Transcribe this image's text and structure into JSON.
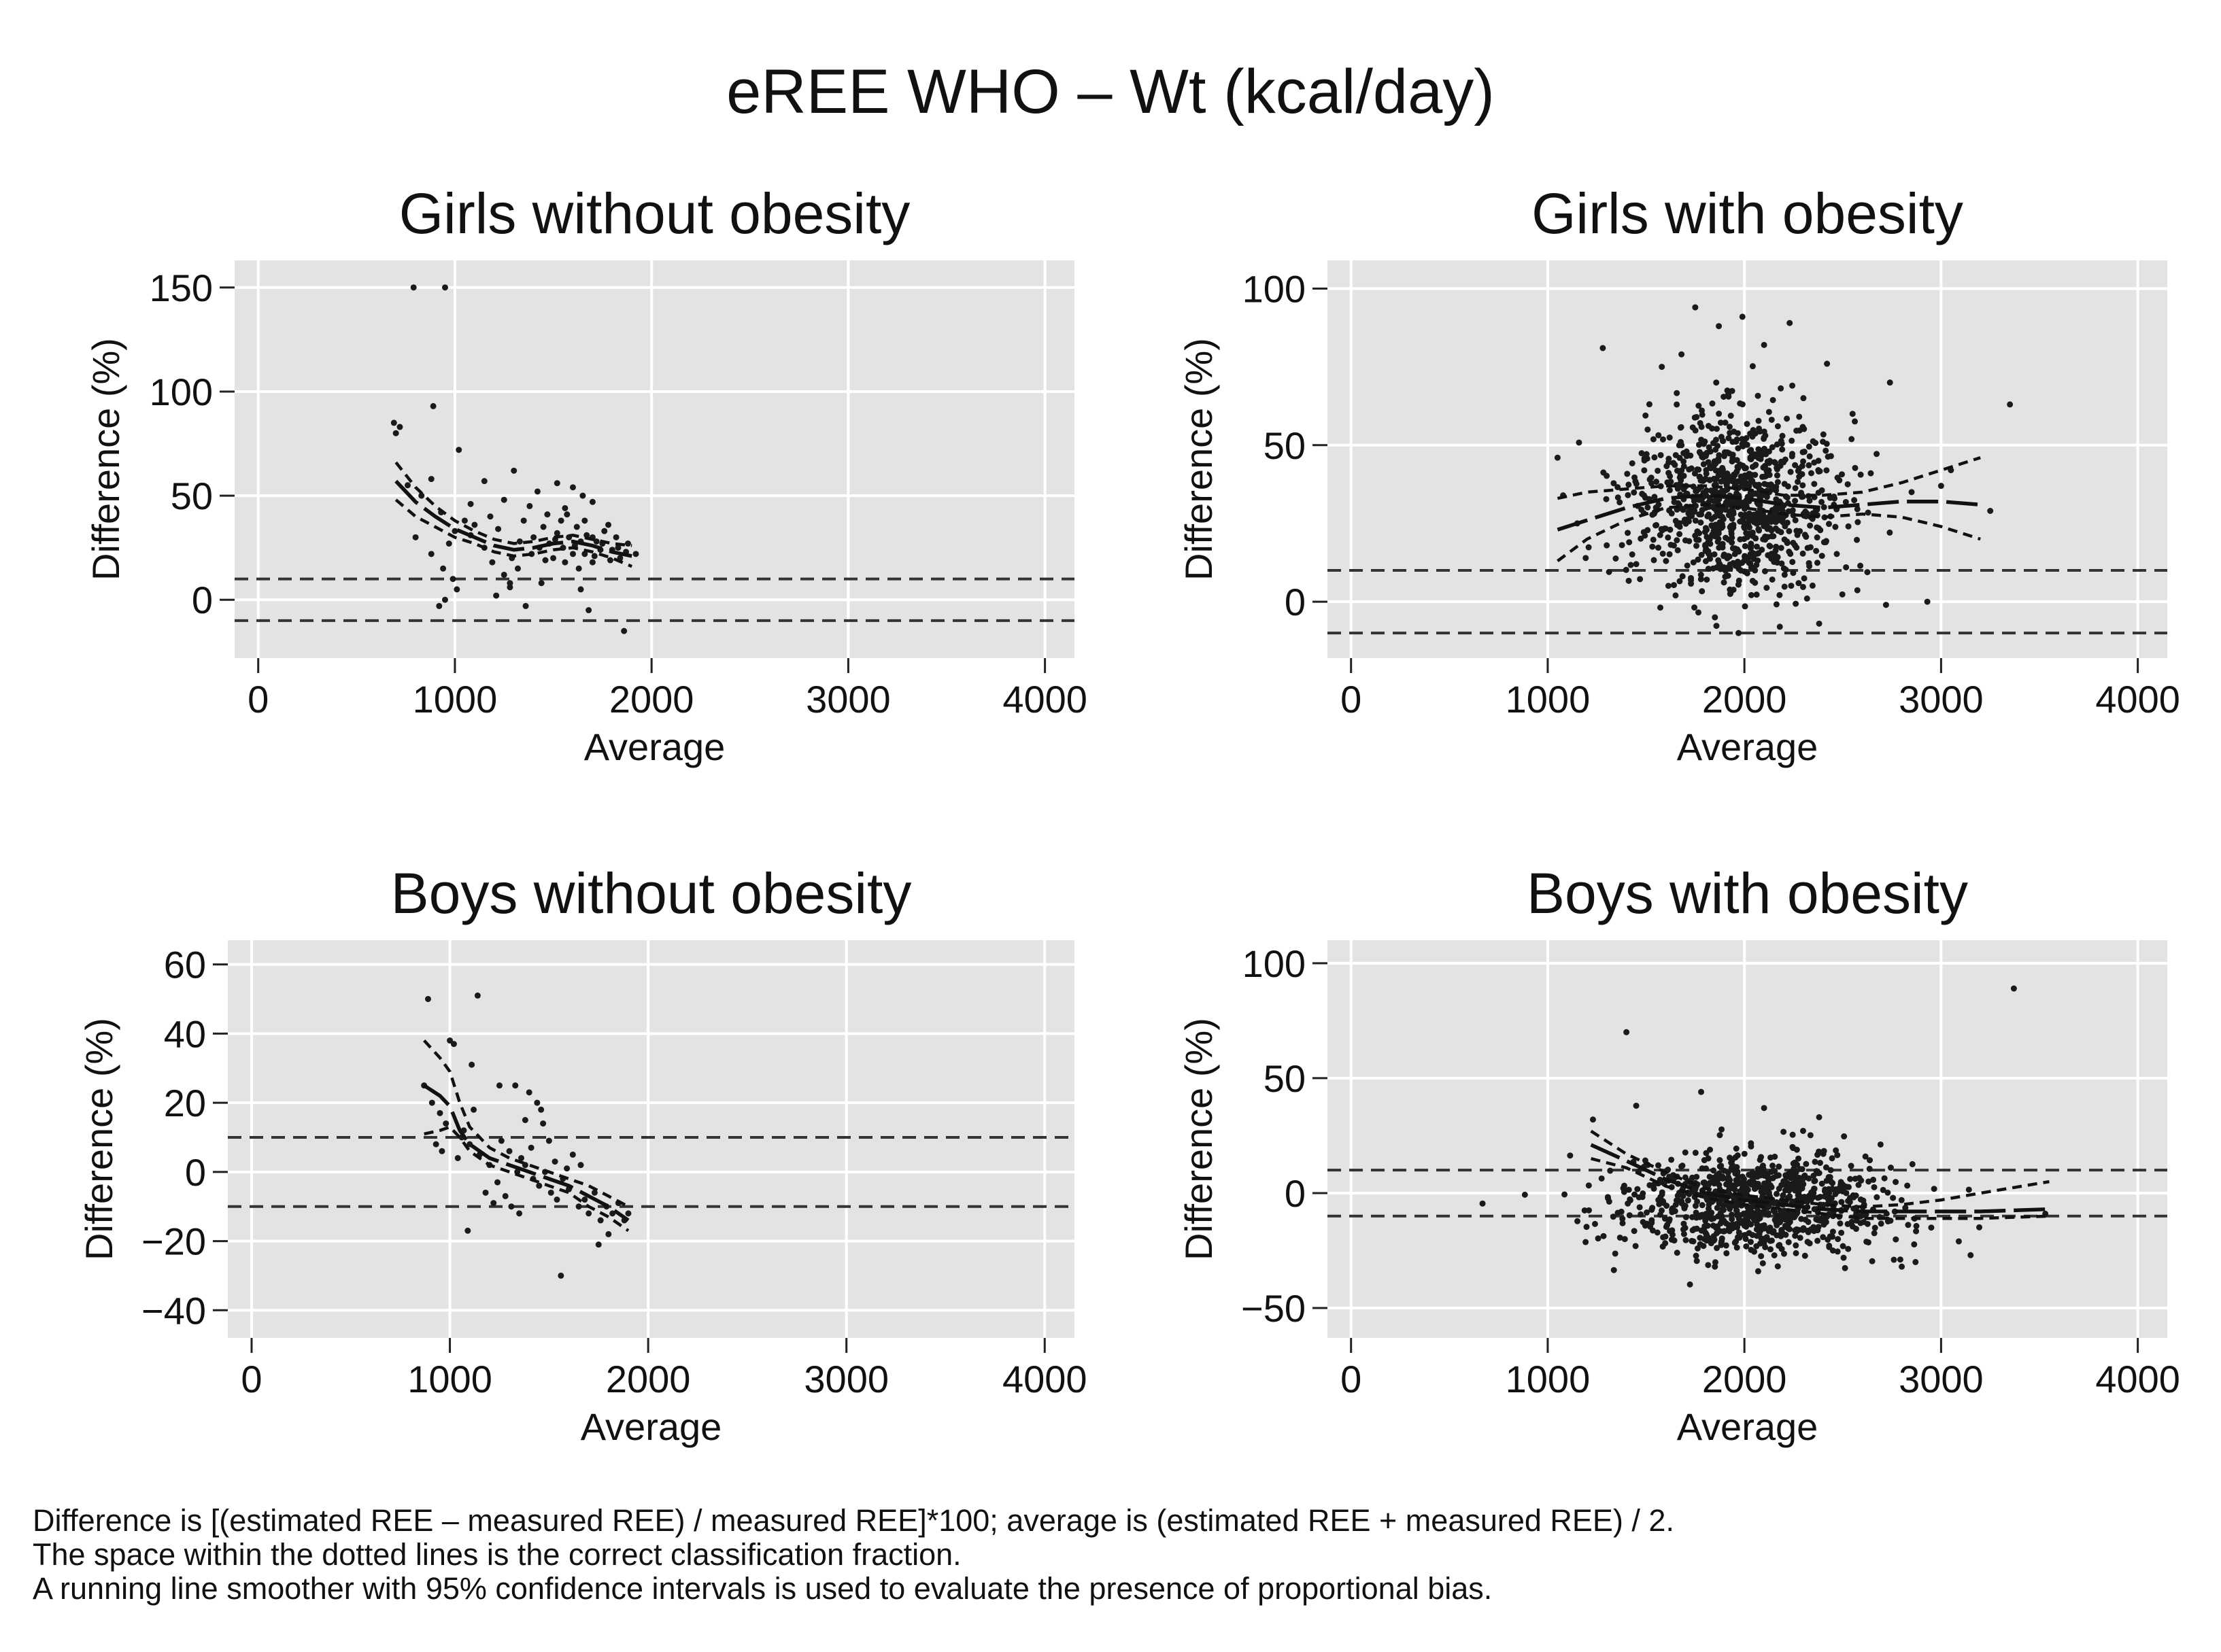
{
  "figure": {
    "title": "eREE WHO – Wt (kcal/day)",
    "notes": [
      "Difference is [(estimated REE – measured REE) / measured REE]*100; average is (estimated REE + measured REE) / 2.",
      "The space within the dotted lines is the correct classification fraction.",
      "A running line smoother with 95% confidence intervals is used to evaluate the presence of proportional bias."
    ]
  },
  "colors": {
    "plot_background": "#e3e3e3",
    "grid": "#ffffff",
    "marks": "#1a1a1a"
  },
  "chart_data": [
    {
      "type": "scatter",
      "title": "Girls without obesity",
      "xlabel": "Average",
      "ylabel": "Difference (%)",
      "xlim": [
        -120,
        4150
      ],
      "ylim": [
        -28,
        163
      ],
      "xticks": [
        0,
        1000,
        2000,
        3000,
        4000
      ],
      "yticks": [
        0,
        50,
        100,
        150
      ],
      "grid": true,
      "reference_lines": [
        10,
        -10
      ],
      "smoother": {
        "x": [
          700,
          800,
          900,
          1000,
          1100,
          1200,
          1300,
          1400,
          1500,
          1600,
          1700,
          1800,
          1900
        ],
        "center": [
          57,
          47,
          40,
          34,
          30,
          26,
          24,
          25,
          27,
          28,
          26,
          23,
          21
        ],
        "upper": [
          66,
          54,
          45,
          38,
          33,
          29,
          27,
          28,
          30,
          31,
          29,
          27,
          26
        ],
        "lower": [
          48,
          40,
          35,
          30,
          27,
          23,
          21,
          22,
          24,
          25,
          23,
          20,
          16
        ]
      },
      "points": [
        [
          790,
          150
        ],
        [
          950,
          150
        ],
        [
          890,
          93
        ],
        [
          690,
          85
        ],
        [
          720,
          83
        ],
        [
          700,
          80
        ],
        [
          1020,
          72
        ],
        [
          1300,
          62
        ],
        [
          1150,
          57
        ],
        [
          880,
          58
        ],
        [
          760,
          55
        ],
        [
          830,
          50
        ],
        [
          1080,
          46
        ],
        [
          1250,
          48
        ],
        [
          930,
          42
        ],
        [
          1180,
          40
        ],
        [
          1380,
          45
        ],
        [
          1420,
          52
        ],
        [
          1520,
          56
        ],
        [
          1600,
          54
        ],
        [
          1650,
          50
        ],
        [
          1700,
          47
        ],
        [
          1560,
          44
        ],
        [
          1470,
          41
        ],
        [
          1350,
          38
        ],
        [
          1220,
          34
        ],
        [
          1080,
          31
        ],
        [
          970,
          27
        ],
        [
          880,
          22
        ],
        [
          800,
          30
        ],
        [
          940,
          15
        ],
        [
          990,
          10
        ],
        [
          1010,
          5
        ],
        [
          950,
          0
        ],
        [
          920,
          -3
        ],
        [
          1190,
          18
        ],
        [
          1250,
          12
        ],
        [
          1280,
          8
        ],
        [
          1320,
          15
        ],
        [
          1210,
          2
        ],
        [
          1280,
          6
        ],
        [
          1360,
          -3
        ],
        [
          1440,
          8
        ],
        [
          1500,
          20
        ],
        [
          1550,
          25
        ],
        [
          1580,
          30
        ],
        [
          1620,
          35
        ],
        [
          1660,
          22
        ],
        [
          1700,
          18
        ],
        [
          1720,
          28
        ],
        [
          1760,
          33
        ],
        [
          1800,
          24
        ],
        [
          1840,
          20
        ],
        [
          1880,
          27
        ],
        [
          1920,
          22
        ],
        [
          1640,
          5
        ],
        [
          1680,
          -5
        ],
        [
          1860,
          -15
        ],
        [
          1400,
          30
        ],
        [
          1450,
          35
        ],
        [
          1480,
          27
        ],
        [
          1520,
          32
        ],
        [
          1560,
          18
        ],
        [
          1600,
          22
        ],
        [
          1640,
          28
        ],
        [
          1660,
          38
        ],
        [
          1700,
          30
        ],
        [
          1740,
          24
        ],
        [
          1780,
          36
        ],
        [
          1820,
          30
        ],
        [
          1430,
          25
        ],
        [
          1460,
          19
        ],
        [
          1510,
          29
        ],
        [
          1540,
          38
        ],
        [
          1570,
          41
        ],
        [
          1610,
          26
        ],
        [
          1630,
          15
        ],
        [
          1670,
          31
        ],
        [
          1710,
          21
        ],
        [
          1750,
          27
        ],
        [
          1790,
          19
        ],
        [
          1830,
          25
        ],
        [
          1870,
          23
        ],
        [
          1390,
          22
        ],
        [
          1330,
          28
        ],
        [
          1290,
          20
        ],
        [
          1150,
          25
        ],
        [
          1100,
          36
        ],
        [
          1050,
          38
        ],
        [
          1000,
          33
        ]
      ]
    },
    {
      "type": "scatter",
      "title": "Girls with obesity",
      "xlabel": "Average",
      "ylabel": "Difference (%)",
      "xlim": [
        -120,
        4150
      ],
      "ylim": [
        -18,
        109
      ],
      "xticks": [
        0,
        1000,
        2000,
        3000,
        4000
      ],
      "yticks": [
        0,
        50,
        100
      ],
      "grid": true,
      "reference_lines": [
        10,
        -10
      ],
      "smoother": {
        "x": [
          1050,
          1200,
          1400,
          1600,
          1800,
          2000,
          2200,
          2400,
          2600,
          2800,
          3000,
          3200
        ],
        "center": [
          23,
          26,
          30,
          33,
          34,
          33,
          31,
          30,
          31,
          32,
          32,
          31
        ],
        "upper": [
          33,
          35,
          36,
          37,
          37,
          36,
          34,
          34,
          35,
          38,
          42,
          46
        ],
        "lower": [
          13,
          20,
          26,
          30,
          31,
          30,
          28,
          27,
          28,
          27,
          24,
          20
        ]
      },
      "points": [
        [
          1280,
          81
        ],
        [
          1750,
          94
        ],
        [
          1870,
          88
        ],
        [
          1990,
          91
        ],
        [
          2230,
          89
        ],
        [
          2740,
          70
        ],
        [
          3350,
          63
        ],
        [
          1050,
          46
        ],
        [
          2100,
          82
        ],
        [
          2420,
          76
        ],
        [
          1680,
          79
        ],
        [
          1580,
          75
        ],
        [
          2300,
          65
        ],
        [
          2550,
          60
        ],
        [
          2930,
          0
        ],
        [
          2720,
          -1
        ],
        [
          2380,
          -7
        ],
        [
          2180,
          -8
        ],
        [
          1970,
          -10
        ],
        [
          1850,
          -5
        ],
        [
          1650,
          2
        ],
        [
          1450,
          12
        ],
        [
          1300,
          18
        ],
        [
          1150,
          25
        ],
        [
          3250,
          29
        ],
        [
          3050,
          42
        ],
        [
          3000,
          37
        ],
        [
          2850,
          35
        ]
      ],
      "cluster": {
        "count": 950,
        "x_mean": 1950,
        "x_sd": 260,
        "y_mean": 32,
        "y_sd": 14
      }
    },
    {
      "type": "scatter",
      "title": "Boys without obesity",
      "xlabel": "Average",
      "ylabel": "Difference (%)",
      "xlim": [
        -120,
        4150
      ],
      "ylim": [
        -48,
        67
      ],
      "xticks": [
        0,
        1000,
        2000,
        3000,
        4000
      ],
      "yticks": [
        -40,
        -20,
        0,
        20,
        40,
        60
      ],
      "grid": true,
      "reference_lines": [
        10,
        -10
      ],
      "smoother": {
        "x": [
          870,
          950,
          1000,
          1050,
          1100,
          1200,
          1300,
          1400,
          1500,
          1600,
          1700,
          1800,
          1900
        ],
        "center": [
          25,
          22,
          19,
          12,
          8,
          4,
          2,
          0,
          -2,
          -4,
          -7,
          -10,
          -14
        ],
        "upper": [
          38,
          33,
          29,
          20,
          13,
          7,
          4,
          2,
          0,
          -2,
          -4,
          -7,
          -10
        ],
        "lower": [
          11,
          12,
          13,
          10,
          6,
          2,
          0,
          -2,
          -4,
          -6,
          -10,
          -13,
          -17
        ]
      },
      "points": [
        [
          890,
          50
        ],
        [
          1140,
          51
        ],
        [
          1000,
          38
        ],
        [
          1020,
          37
        ],
        [
          1110,
          31
        ],
        [
          1250,
          25
        ],
        [
          1330,
          25
        ],
        [
          1400,
          23
        ],
        [
          1440,
          20
        ],
        [
          1460,
          18
        ],
        [
          1380,
          15
        ],
        [
          1560,
          -30
        ],
        [
          1090,
          -17
        ],
        [
          1750,
          -21
        ],
        [
          1800,
          -18
        ],
        [
          870,
          25
        ],
        [
          910,
          20
        ],
        [
          950,
          17
        ],
        [
          980,
          14
        ],
        [
          1060,
          10
        ],
        [
          1100,
          8
        ],
        [
          1150,
          5
        ],
        [
          1200,
          2
        ],
        [
          1240,
          -3
        ],
        [
          1280,
          -7
        ],
        [
          1310,
          -10
        ],
        [
          1350,
          -12
        ],
        [
          1380,
          2
        ],
        [
          1420,
          -2
        ],
        [
          1450,
          -4
        ],
        [
          1480,
          0
        ],
        [
          1510,
          -6
        ],
        [
          1540,
          -8
        ],
        [
          1570,
          -2
        ],
        [
          1600,
          -5
        ],
        [
          1620,
          5
        ],
        [
          1650,
          -10
        ],
        [
          1680,
          -8
        ],
        [
          1700,
          -12
        ],
        [
          1730,
          -6
        ],
        [
          1760,
          -14
        ],
        [
          1790,
          -10
        ],
        [
          1820,
          -12
        ],
        [
          1850,
          -9
        ],
        [
          1880,
          -14
        ],
        [
          1900,
          -12
        ],
        [
          1180,
          -6
        ],
        [
          1220,
          -9
        ],
        [
          1300,
          6
        ],
        [
          1340,
          0
        ],
        [
          1360,
          4
        ],
        [
          1410,
          7
        ],
        [
          1530,
          3
        ],
        [
          1590,
          1
        ],
        [
          1660,
          2
        ],
        [
          930,
          8
        ],
        [
          960,
          6
        ],
        [
          1040,
          4
        ],
        [
          1070,
          12
        ],
        [
          1120,
          18
        ],
        [
          1260,
          9
        ],
        [
          1470,
          14
        ],
        [
          1500,
          9
        ]
      ]
    },
    {
      "type": "scatter",
      "title": "Boys with obesity",
      "xlabel": "Average",
      "ylabel": "Difference (%)",
      "xlim": [
        -120,
        4150
      ],
      "ylim": [
        -63,
        110
      ],
      "xticks": [
        0,
        1000,
        2000,
        3000,
        4000
      ],
      "yticks": [
        -50,
        0,
        50,
        100
      ],
      "grid": true,
      "reference_lines": [
        10,
        -10
      ],
      "smoother": {
        "x": [
          1220,
          1400,
          1600,
          1800,
          2000,
          2200,
          2400,
          2600,
          2800,
          3000,
          3200,
          3550
        ],
        "center": [
          21,
          14,
          6,
          0,
          -3,
          -5,
          -7,
          -8,
          -8,
          -8,
          -8,
          -7
        ],
        "upper": [
          27,
          17,
          9,
          2,
          -1,
          -3,
          -5,
          -6,
          -5,
          -3,
          0,
          5
        ],
        "lower": [
          15,
          11,
          3,
          -2,
          -5,
          -7,
          -9,
          -11,
          -11,
          -11,
          -11,
          -10
        ]
      },
      "points": [
        [
          3370,
          89
        ],
        [
          1400,
          70
        ],
        [
          3150,
          -27
        ],
        [
          3090,
          -21
        ],
        [
          3530,
          -9
        ],
        [
          2800,
          -32
        ],
        [
          2950,
          -15
        ],
        [
          2870,
          -30
        ],
        [
          2760,
          -29
        ],
        [
          1780,
          44
        ],
        [
          1230,
          32
        ],
        [
          1450,
          38
        ],
        [
          2100,
          37
        ],
        [
          2380,
          33
        ],
        [
          1850,
          -32
        ],
        [
          2070,
          -34
        ],
        [
          2450,
          -25
        ]
      ],
      "cluster": {
        "count": 900,
        "x_mean": 2050,
        "x_sd": 320,
        "y_mean": -4,
        "y_sd": 11
      }
    }
  ]
}
